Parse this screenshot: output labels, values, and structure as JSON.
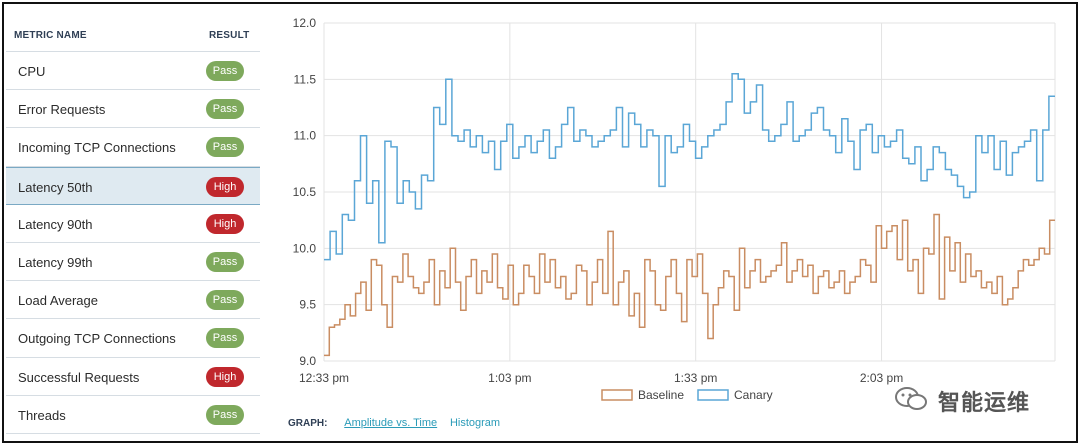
{
  "table": {
    "header_name": "METRIC NAME",
    "header_result": "RESULT",
    "rows": [
      {
        "name": "CPU",
        "result": "Pass",
        "status": "pass"
      },
      {
        "name": "Error Requests",
        "result": "Pass",
        "status": "pass"
      },
      {
        "name": "Incoming TCP Connections",
        "result": "Pass",
        "status": "pass"
      },
      {
        "name": "Latency 50th",
        "result": "High",
        "status": "high",
        "selected": true
      },
      {
        "name": "Latency 90th",
        "result": "High",
        "status": "high"
      },
      {
        "name": "Latency 99th",
        "result": "Pass",
        "status": "pass"
      },
      {
        "name": "Load Average",
        "result": "Pass",
        "status": "pass"
      },
      {
        "name": "Outgoing TCP Connections",
        "result": "Pass",
        "status": "pass"
      },
      {
        "name": "Successful Requests",
        "result": "High",
        "status": "high"
      },
      {
        "name": "Threads",
        "result": "Pass",
        "status": "pass"
      }
    ]
  },
  "colors": {
    "pass": "#7ea95c",
    "high": "#c0282d",
    "baseline": "#c98d62",
    "canary": "#5aa6d6",
    "link": "#2a9bb8"
  },
  "chart_data": {
    "type": "line",
    "step": true,
    "title": "",
    "xlabel": "",
    "ylabel": "",
    "x_ticks": [
      "12:33 pm",
      "1:03 pm",
      "1:33 pm",
      "2:03 pm"
    ],
    "y_ticks": [
      "9.0",
      "9.5",
      "10.0",
      "10.5",
      "11.0",
      "11.5",
      "12.0"
    ],
    "ylim": [
      9.0,
      12.0
    ],
    "x_range_minutes": [
      0,
      118
    ],
    "grid": true,
    "legend": "bottom-center",
    "series": [
      {
        "name": "Baseline",
        "color": "#c98d62",
        "values": [
          9.05,
          9.3,
          9.32,
          9.37,
          9.5,
          9.4,
          9.6,
          9.7,
          9.45,
          9.9,
          9.85,
          9.5,
          9.3,
          9.75,
          9.7,
          9.95,
          9.75,
          9.65,
          9.6,
          9.7,
          9.9,
          9.5,
          9.8,
          9.65,
          10.0,
          9.7,
          9.45,
          9.75,
          9.9,
          9.6,
          9.8,
          9.7,
          9.95,
          9.65,
          9.55,
          9.85,
          9.5,
          9.6,
          9.85,
          9.75,
          9.6,
          9.95,
          9.7,
          9.9,
          9.65,
          9.75,
          9.55,
          9.6,
          9.85,
          9.8,
          9.5,
          9.7,
          9.9,
          9.6,
          10.15,
          9.5,
          9.7,
          9.8,
          9.4,
          9.6,
          9.3,
          9.9,
          9.8,
          9.5,
          9.45,
          9.75,
          9.9,
          9.6,
          9.35,
          9.9,
          9.75,
          9.95,
          9.6,
          9.2,
          9.5,
          9.65,
          9.8,
          9.75,
          9.45,
          10.0,
          9.65,
          9.8,
          9.9,
          9.7,
          9.75,
          9.8,
          9.85,
          10.05,
          9.7,
          9.8,
          9.9,
          9.75,
          9.85,
          9.6,
          9.75,
          9.8,
          9.65,
          9.7,
          9.8,
          9.6,
          9.7,
          9.75,
          9.9,
          9.85,
          9.7,
          10.2,
          10.0,
          10.15,
          10.2,
          9.9,
          10.25,
          9.8,
          9.9,
          9.6,
          10.0,
          9.95,
          10.3,
          9.55,
          10.1,
          9.8,
          10.05,
          9.7,
          9.95,
          9.75,
          9.8,
          9.65,
          9.7,
          9.6,
          9.75,
          9.5,
          9.55,
          9.65,
          9.8,
          9.9,
          9.85,
          9.9,
          10.0,
          9.95,
          10.25
        ]
      },
      {
        "name": "Canary",
        "color": "#5aa6d6",
        "values": [
          9.9,
          10.15,
          9.95,
          10.3,
          10.25,
          10.6,
          11.0,
          10.4,
          10.6,
          10.05,
          10.95,
          10.9,
          10.4,
          10.6,
          10.5,
          10.35,
          10.65,
          10.6,
          11.25,
          11.1,
          11.5,
          11.0,
          10.95,
          11.05,
          10.9,
          11.0,
          10.85,
          10.95,
          10.7,
          10.95,
          11.1,
          10.8,
          10.9,
          11.0,
          10.85,
          10.95,
          11.05,
          10.8,
          10.9,
          11.1,
          11.25,
          10.95,
          11.05,
          11.0,
          10.9,
          10.95,
          11.0,
          11.05,
          11.25,
          10.9,
          11.2,
          11.1,
          10.9,
          11.05,
          11.0,
          10.55,
          11.0,
          10.85,
          10.9,
          11.1,
          10.95,
          10.8,
          10.9,
          11.0,
          11.05,
          11.1,
          11.3,
          11.55,
          11.5,
          11.2,
          11.3,
          11.45,
          11.05,
          10.95,
          11.0,
          11.1,
          11.3,
          10.95,
          11.0,
          11.05,
          11.2,
          11.25,
          11.05,
          11.0,
          10.85,
          11.15,
          10.95,
          10.7,
          11.05,
          11.1,
          10.85,
          11.0,
          10.9,
          10.95,
          11.05,
          10.8,
          10.75,
          10.9,
          10.6,
          10.7,
          10.9,
          10.85,
          10.7,
          10.65,
          10.55,
          10.45,
          10.5,
          11.0,
          10.85,
          11.0,
          10.7,
          10.95,
          10.65,
          10.85,
          10.9,
          10.95,
          11.05,
          10.6,
          11.05,
          11.35
        ]
      }
    ]
  },
  "footer": {
    "graph_label": "GRAPH:",
    "links": [
      "Amplitude vs. Time",
      "Histogram"
    ],
    "active": 0
  },
  "watermark": {
    "text": "智能运维",
    "icon": "wechat-icon"
  }
}
